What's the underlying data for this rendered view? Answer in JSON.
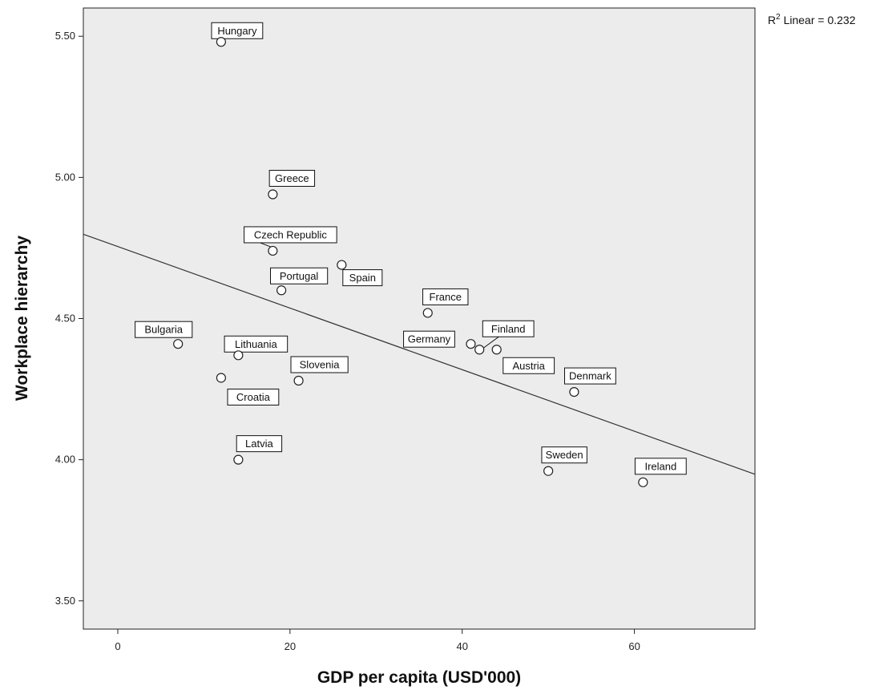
{
  "chart_data": {
    "type": "scatter",
    "xlabel": "GDP per capita (USD'000)",
    "ylabel": "Workplace hierarchy",
    "xlim": [
      -4,
      74
    ],
    "ylim": [
      3.4,
      5.6
    ],
    "x_ticks": [
      0,
      20,
      40,
      60
    ],
    "y_ticks": [
      3.5,
      4.0,
      4.5,
      5.0,
      5.5
    ],
    "x_tick_labels": [
      "0",
      "20",
      "40",
      "60"
    ],
    "y_tick_labels": [
      "3.50",
      "4.00",
      "4.50",
      "5.00",
      "5.50"
    ],
    "grid": false,
    "background_color": "#ececec",
    "annotation": {
      "prefix": "R",
      "sup": "2",
      "suffix": " Linear = 0.232"
    },
    "fit_line": {
      "intercept": 4.755,
      "slope": -0.0109
    },
    "points": [
      {
        "label": "Hungary",
        "x": 12,
        "y": 5.48
      },
      {
        "label": "Greece",
        "x": 18,
        "y": 4.94
      },
      {
        "label": "Czech Republic",
        "x": 18,
        "y": 4.74
      },
      {
        "label": "Spain",
        "x": 26,
        "y": 4.69
      },
      {
        "label": "Portugal",
        "x": 19,
        "y": 4.6
      },
      {
        "label": "France",
        "x": 36,
        "y": 4.52
      },
      {
        "label": "Bulgaria",
        "x": 7,
        "y": 4.41
      },
      {
        "label": "Finland",
        "x": 42,
        "y": 4.39
      },
      {
        "label": "Germany",
        "x": 41,
        "y": 4.41
      },
      {
        "label": "Austria",
        "x": 44,
        "y": 4.39
      },
      {
        "label": "Lithuania",
        "x": 14,
        "y": 4.37
      },
      {
        "label": "Croatia",
        "x": 12,
        "y": 4.29
      },
      {
        "label": "Slovenia",
        "x": 21,
        "y": 4.28
      },
      {
        "label": "Denmark",
        "x": 53,
        "y": 4.24
      },
      {
        "label": "Latvia",
        "x": 14,
        "y": 4.0
      },
      {
        "label": "Sweden",
        "x": 50,
        "y": 3.96
      },
      {
        "label": "Ireland",
        "x": 61,
        "y": 3.92
      }
    ]
  }
}
